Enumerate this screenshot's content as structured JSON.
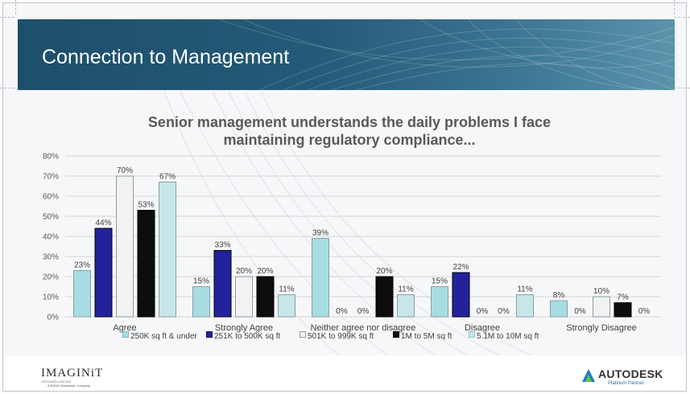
{
  "banner": {
    "title": "Connection to Management"
  },
  "chart_data": {
    "type": "bar",
    "title": "Senior management understands the daily problems I face maintaining regulatory compliance...",
    "title_lines": [
      "Senior management understands the daily problems I face",
      "maintaining regulatory compliance..."
    ],
    "categories": [
      "Agree",
      "Strongly Agree",
      "Neither agree nor disagree",
      "Disagree",
      "Strongly Disagree"
    ],
    "series": [
      {
        "name": "250K sq ft & under",
        "color": "#a8dce3",
        "values": [
          23,
          15,
          39,
          15,
          8
        ]
      },
      {
        "name": "251K to 500K sq ft",
        "color": "#22239c",
        "values": [
          44,
          33,
          0,
          22,
          0
        ]
      },
      {
        "name": "501K to 999K sq ft",
        "color": "#f2f2f2",
        "values": [
          70,
          20,
          0,
          0,
          10
        ]
      },
      {
        "name": "1M to 5M sq ft",
        "color": "#0d0d0d",
        "values": [
          53,
          20,
          20,
          0,
          7
        ]
      },
      {
        "name": "5.1M to 10M sq ft",
        "color": "#c6e6ea",
        "values": [
          67,
          11,
          11,
          11,
          0
        ]
      }
    ],
    "data_labels": [
      [
        "23%",
        "15%",
        "39%",
        "15%",
        "8%"
      ],
      [
        "44%",
        "33%",
        "0%",
        "22%",
        "0%"
      ],
      [
        "70%",
        "20%",
        "0%",
        "0%",
        "10%"
      ],
      [
        "53%",
        "20%",
        "20%",
        "0%",
        "7%"
      ],
      [
        "67%",
        "11%",
        "11%",
        "11%",
        "0%"
      ]
    ],
    "y_ticks": [
      "0%",
      "10%",
      "20%",
      "30%",
      "40%",
      "50%",
      "60%",
      "70%",
      "80%"
    ],
    "ylim": [
      0,
      80
    ],
    "grid": true,
    "legend_position": "bottom"
  },
  "footer": {
    "left_logo": "IMAGINiT",
    "left_logo_sub": "TECHNOLOGIES",
    "left_logo_sub2": "A RAND Worldwide Company",
    "right_logo": "AUTODESK",
    "right_logo_sub": "Platinum Partner"
  },
  "colors": {
    "banner": "#245a78",
    "grid": "#d9d9d9",
    "axis_text": "#595959"
  }
}
